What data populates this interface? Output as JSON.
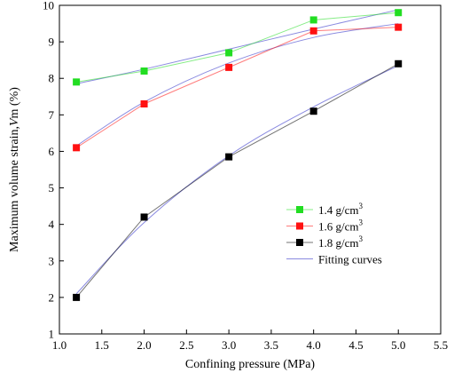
{
  "chart_data": {
    "type": "scatter",
    "xlabel": "Confining pressure  (MPa)",
    "ylabel_main": "Maximum volume strain,",
    "ylabel_var": "V",
    "ylabel_sub": "m",
    "ylabel_unit": " (%)",
    "xlim": [
      1.0,
      5.5
    ],
    "ylim": [
      1,
      10
    ],
    "xticks": [
      "1.0",
      "1.5",
      "2.0",
      "2.5",
      "3.0",
      "3.5",
      "4.0",
      "4.5",
      "5.0",
      "5.5"
    ],
    "yticks": [
      "1",
      "2",
      "3",
      "4",
      "5",
      "6",
      "7",
      "8",
      "9",
      "10"
    ],
    "grid": false,
    "legend_position": "lower-right",
    "fit_color": "#8a8ae0",
    "series": [
      {
        "name": "1.4 g/cm",
        "sup": "3",
        "color": "#22dd22",
        "x": [
          1.2,
          2.0,
          3.0,
          4.0,
          5.0
        ],
        "y": [
          7.9,
          8.2,
          8.7,
          9.6,
          9.8
        ],
        "fit": [
          7.85,
          8.25,
          8.8,
          9.35,
          9.88
        ]
      },
      {
        "name": "1.6 g/cm",
        "sup": "3",
        "color": "#ff1111",
        "x": [
          1.2,
          2.0,
          3.0,
          4.0,
          5.0
        ],
        "y": [
          6.1,
          7.3,
          8.3,
          9.3,
          9.4
        ],
        "fit": [
          6.15,
          7.35,
          8.42,
          9.12,
          9.5
        ]
      },
      {
        "name": "1.8 g/cm",
        "sup": "3",
        "color": "#000000",
        "x": [
          1.2,
          2.0,
          3.0,
          4.0,
          5.0
        ],
        "y": [
          2.0,
          4.2,
          5.85,
          7.1,
          8.4
        ],
        "fit": [
          2.1,
          4.05,
          5.88,
          7.22,
          8.35
        ]
      }
    ],
    "fit_label": "Fitting curves"
  }
}
